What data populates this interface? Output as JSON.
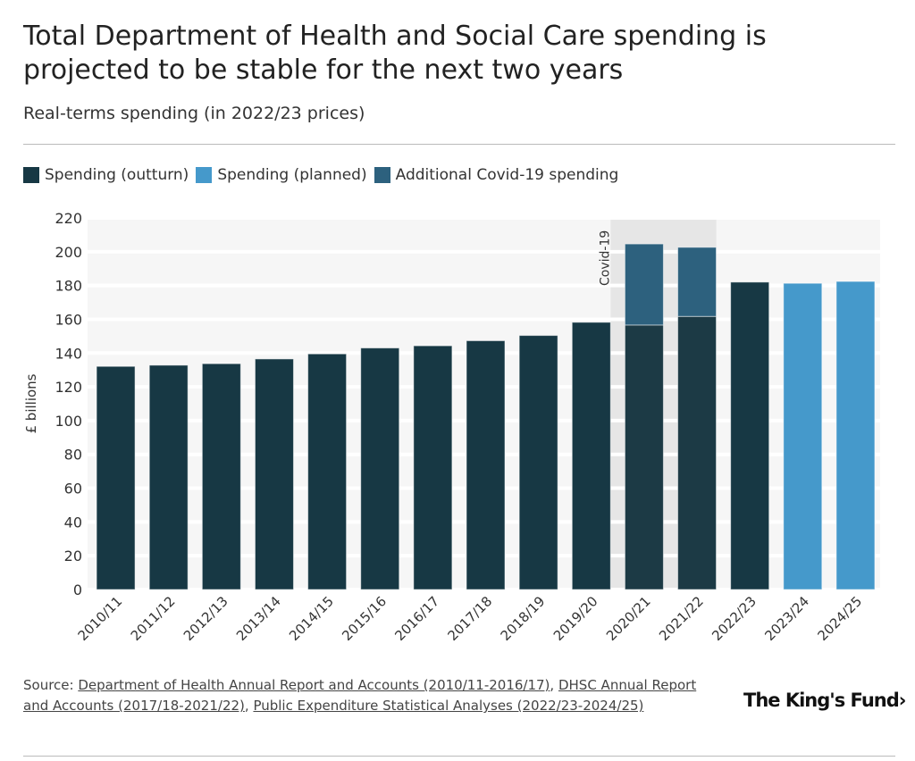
{
  "chart_data": {
    "type": "bar",
    "title": "Total Department of Health and Social Care spending is projected to be stable for the next two years",
    "subtitle": "Real-terms spending (in 2022/23 prices)",
    "ylabel": "£ billions",
    "xlabel": "",
    "ylim": [
      0,
      220
    ],
    "yticks": [
      0,
      20,
      40,
      60,
      80,
      100,
      120,
      140,
      160,
      180,
      200,
      220
    ],
    "grid": true,
    "legend_position": "top-left",
    "categories": [
      "2010/11",
      "2011/12",
      "2012/13",
      "2013/14",
      "2014/15",
      "2015/16",
      "2016/17",
      "2017/18",
      "2018/19",
      "2019/20",
      "2020/21",
      "2021/22",
      "2022/23",
      "2023/24",
      "2024/25"
    ],
    "series": [
      {
        "name": "Spending (outturn)",
        "color": "#173844",
        "values": [
          132.1,
          132.8,
          133.7,
          136.5,
          139.5,
          143.0,
          144.3,
          147.3,
          150.4,
          158.2,
          156.6,
          161.7,
          182.0,
          null,
          null
        ]
      },
      {
        "name": "Spending (planned)",
        "color": "#4599cb",
        "values": [
          null,
          null,
          null,
          null,
          null,
          null,
          null,
          null,
          null,
          null,
          null,
          null,
          null,
          181.3,
          182.4
        ]
      },
      {
        "name": "Additional Covid-19 spending",
        "color": "#2d617e",
        "values": [
          null,
          null,
          null,
          null,
          null,
          null,
          null,
          null,
          null,
          null,
          48.0,
          40.9,
          null,
          null,
          null
        ]
      }
    ],
    "annotation": {
      "label": "Covid-19",
      "categories": [
        "2020/21",
        "2021/22"
      ]
    }
  },
  "source": {
    "prefix": "Source: ",
    "links": [
      "Department of Health Annual Report and Accounts (2010/11-2016/17)",
      "DHSC Annual Report and Accounts (2017/18-2021/22)",
      "Public Expenditure Statistical Analyses (2022/23-2024/25)"
    ],
    "sep": ", "
  },
  "logo": "The King's Fund›"
}
